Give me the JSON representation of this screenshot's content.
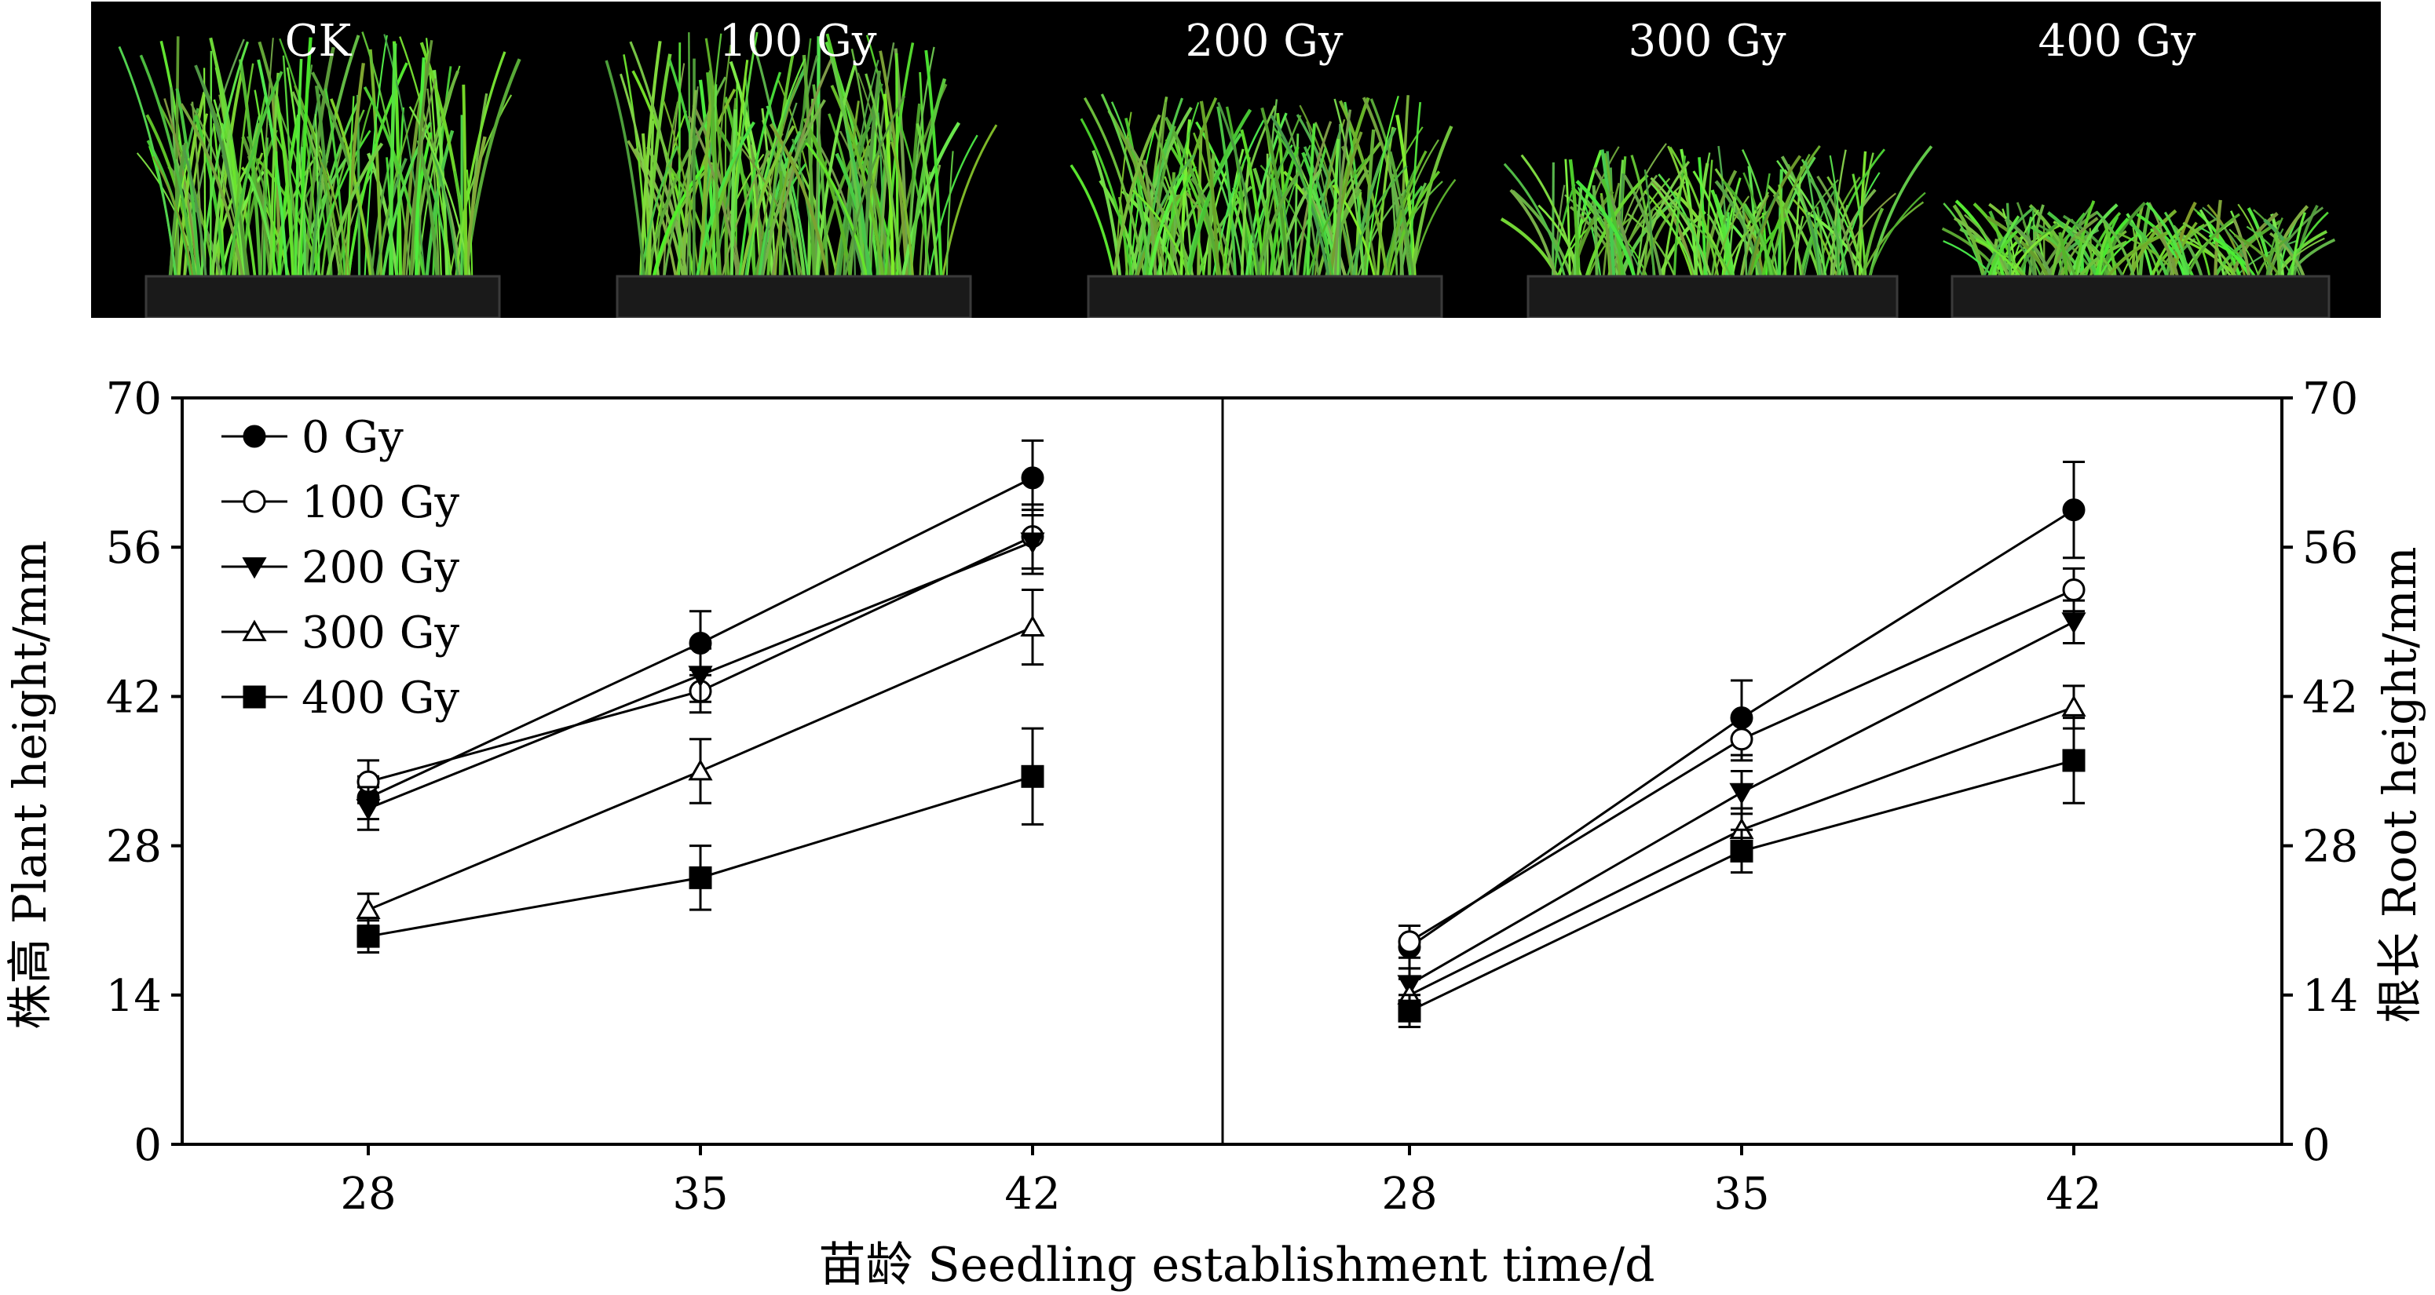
{
  "photo": {
    "labels": [
      "CK",
      "100 Gy",
      "200 Gy",
      "300 Gy",
      "400 Gy"
    ]
  },
  "chart_data": {
    "type": "line",
    "xlabel": "苗龄 Seedling establishment time/d",
    "legend": {
      "placement": "top-left"
    },
    "panels": [
      {
        "ylabel": "株高 Plant height/mm",
        "ylim": [
          0,
          70
        ],
        "yticks": [
          0,
          14,
          28,
          42,
          56,
          70
        ],
        "x": [
          28,
          35,
          42
        ],
        "series": [
          {
            "name": "0 Gy",
            "marker": "circle-filled",
            "values": [
              32.5,
              47.0,
              62.5
            ],
            "errors": [
              2.0,
              3.0,
              3.5
            ]
          },
          {
            "name": "100 Gy",
            "marker": "circle-open",
            "values": [
              34.0,
              42.5,
              57.0
            ],
            "errors": [
              2.0,
              2.0,
              3.0
            ]
          },
          {
            "name": "200 Gy",
            "marker": "triangle-down",
            "values": [
              31.5,
              44.0,
              56.5
            ],
            "errors": [
              2.0,
              2.5,
              3.0
            ]
          },
          {
            "name": "300 Gy",
            "marker": "triangle-open",
            "values": [
              22.0,
              35.0,
              48.5
            ],
            "errors": [
              1.5,
              3.0,
              3.5
            ]
          },
          {
            "name": "400 Gy",
            "marker": "square-filled",
            "values": [
              19.5,
              25.0,
              34.5
            ],
            "errors": [
              1.5,
              3.0,
              4.5
            ]
          }
        ]
      },
      {
        "ylabel": "根长 Root height/mm",
        "ylim": [
          0,
          70
        ],
        "yticks": [
          0,
          14,
          28,
          42,
          56,
          70
        ],
        "x": [
          28,
          35,
          42
        ],
        "series": [
          {
            "name": "0 Gy",
            "marker": "circle-filled",
            "values": [
              18.5,
              40.0,
              59.5
            ],
            "errors": [
              2.0,
              3.5,
              4.5
            ]
          },
          {
            "name": "100 Gy",
            "marker": "circle-open",
            "values": [
              19.0,
              38.0,
              52.0
            ],
            "errors": [
              1.5,
              2.0,
              2.0
            ]
          },
          {
            "name": "200 Gy",
            "marker": "triangle-down",
            "values": [
              15.0,
              33.0,
              49.0
            ],
            "errors": [
              1.5,
              2.0,
              2.0
            ]
          },
          {
            "name": "300 Gy",
            "marker": "triangle-open",
            "values": [
              14.0,
              29.5,
              41.0
            ],
            "errors": [
              1.5,
              2.0,
              2.0
            ]
          },
          {
            "name": "400 Gy",
            "marker": "square-filled",
            "values": [
              12.5,
              27.5,
              36.0
            ],
            "errors": [
              1.5,
              2.0,
              4.0
            ]
          }
        ]
      }
    ]
  }
}
